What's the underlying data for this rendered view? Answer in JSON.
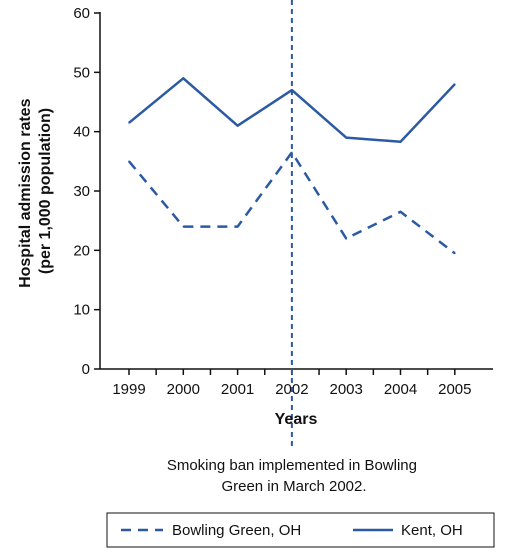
{
  "chart_data": {
    "type": "line",
    "title": "",
    "xlabel": "Years",
    "ylabel_lines": [
      "Hospital admission rates",
      "(per 1,000 population)"
    ],
    "x": [
      "1999",
      "2000",
      "2001",
      "2002",
      "2003",
      "2004",
      "2005"
    ],
    "ylim": [
      0,
      60
    ],
    "yticks": [
      "0",
      "10",
      "20",
      "30",
      "40",
      "50",
      "60"
    ],
    "series": [
      {
        "name": "Bowling Green, OH",
        "style": "dashed",
        "color": "#2b5aa3",
        "values": [
          35,
          24,
          24,
          36.5,
          22,
          26.5,
          19.5
        ]
      },
      {
        "name": "Kent, OH",
        "style": "solid",
        "color": "#2b5aa3",
        "values": [
          41.5,
          49,
          41,
          47,
          39,
          38.3,
          48
        ]
      }
    ],
    "annotation": {
      "x": "2002",
      "style": "dashed",
      "lines": [
        "Smoking ban implemented in Bowling",
        "Green in March 2002."
      ]
    },
    "legend_position": "bottom",
    "grid": false
  }
}
